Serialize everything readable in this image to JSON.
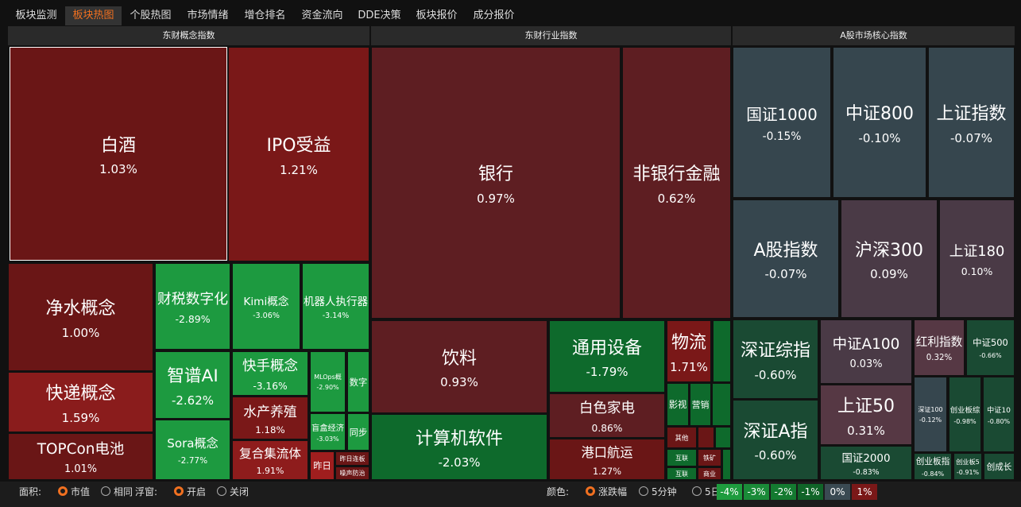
{
  "tabs": [
    "板块监测",
    "板块热图",
    "个股热图",
    "市场情绪",
    "增仓排名",
    "资金流向",
    "DDE决策",
    "板块报价",
    "成分报价"
  ],
  "sections": [
    {
      "title": "东财概念指数",
      "tiles": [
        {
          "name": "白酒",
          "change": "1.03%"
        },
        {
          "name": "IPO受益",
          "change": "1.21%"
        },
        {
          "name": "净水概念",
          "change": "1.00%"
        },
        {
          "name": "快递概念",
          "change": "1.59%"
        },
        {
          "name": "TOPCon电池",
          "change": "1.01%"
        },
        {
          "name": "财税数字化",
          "change": "-2.89%"
        },
        {
          "name": "Kimi概念",
          "change": "-3.06%"
        },
        {
          "name": "机器人执行器",
          "change": "-3.14%"
        },
        {
          "name": "智谱AI",
          "change": "-2.62%"
        },
        {
          "name": "Sora概念",
          "change": "-2.77%"
        },
        {
          "name": "快手概念",
          "change": "-3.16%"
        },
        {
          "name": "水产养殖",
          "change": "1.18%"
        },
        {
          "name": "复合集流体",
          "change": "1.91%"
        },
        {
          "name": "MLOps概",
          "change": "-2.90%"
        },
        {
          "name": "数字"
        },
        {
          "name": "盲盒经济",
          "change": "-3.03%"
        },
        {
          "name": "同步"
        },
        {
          "name": "昨日"
        },
        {
          "name": "昨日连板"
        },
        {
          "name": "噪声防治"
        }
      ]
    },
    {
      "title": "东财行业指数",
      "tiles": [
        {
          "name": "银行",
          "change": "0.97%"
        },
        {
          "name": "非银行金融",
          "change": "0.62%"
        },
        {
          "name": "饮料",
          "change": "0.93%"
        },
        {
          "name": "计算机软件",
          "change": "-2.03%"
        },
        {
          "name": "通用设备",
          "change": "-1.79%"
        },
        {
          "name": "白色家电",
          "change": "0.86%"
        },
        {
          "name": "港口航运",
          "change": "1.27%"
        },
        {
          "name": "物流",
          "change": "1.71%"
        },
        {
          "name": "影视"
        },
        {
          "name": "营销"
        },
        {
          "name": "其他"
        },
        {
          "name": "互联"
        },
        {
          "name": "铁矿"
        },
        {
          "name": "互联"
        },
        {
          "name": "商业"
        }
      ]
    },
    {
      "title": "A股市场核心指数",
      "tiles": [
        {
          "name": "国证1000",
          "change": "-0.15%"
        },
        {
          "name": "中证800",
          "change": "-0.10%"
        },
        {
          "name": "上证指数",
          "change": "-0.07%"
        },
        {
          "name": "A股指数",
          "change": "-0.07%"
        },
        {
          "name": "沪深300",
          "change": "0.09%"
        },
        {
          "name": "上证180",
          "change": "0.10%"
        },
        {
          "name": "深证综指",
          "change": "-0.60%"
        },
        {
          "name": "深证A指",
          "change": "-0.60%"
        },
        {
          "name": "中证A100",
          "change": "0.03%"
        },
        {
          "name": "上证50",
          "change": "0.31%"
        },
        {
          "name": "国证2000",
          "change": "-0.83%"
        },
        {
          "name": "红利指数",
          "change": "0.32%"
        },
        {
          "name": "中证500",
          "change": "-0.66%"
        },
        {
          "name": "深证100",
          "change": "-0.12%"
        },
        {
          "name": "创业板综",
          "change": "-0.98%"
        },
        {
          "name": "中证10",
          "change": "-0.80%"
        },
        {
          "name": "创业板指",
          "change": "-0.84%"
        },
        {
          "name": "创业板5",
          "change": "-0.91%"
        },
        {
          "name": "创成长"
        }
      ]
    }
  ],
  "footer": {
    "area_label": "面积:",
    "area_options": [
      "市值",
      "相同"
    ],
    "float_label": "浮窗:",
    "float_options": [
      "开启",
      "关闭"
    ],
    "color_label": "颜色:",
    "color_options": [
      "涨跌幅",
      "5分钟",
      "5日"
    ],
    "legend": [
      "-4%",
      "-3%",
      "-2%",
      "-1%",
      "0%",
      "1%"
    ]
  }
}
